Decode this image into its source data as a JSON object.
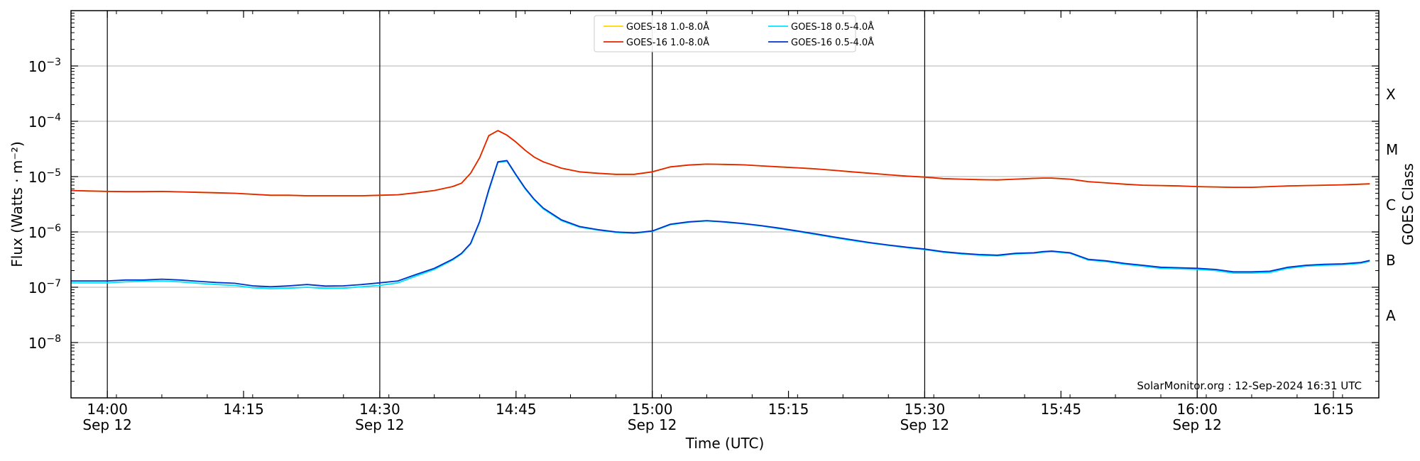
{
  "chart_data": {
    "type": "line",
    "title": "",
    "xlabel": "Time (UTC)",
    "ylabel": "Flux (Watts · m⁻²)",
    "y2label": "GOES Class",
    "yscale": "log",
    "xlim": [
      "13:56",
      "16:20"
    ],
    "ylim": [
      1e-09,
      0.01
    ],
    "grid": "horizontal",
    "legend": "top-center",
    "date": "Sep 12",
    "x_ticks": [
      {
        "time": "14:00",
        "label": "14:00",
        "date": "Sep 12"
      },
      {
        "time": "14:15",
        "label": "14:15",
        "date": ""
      },
      {
        "time": "14:30",
        "label": "14:30",
        "date": "Sep 12"
      },
      {
        "time": "14:45",
        "label": "14:45",
        "date": ""
      },
      {
        "time": "15:00",
        "label": "15:00",
        "date": "Sep 12"
      },
      {
        "time": "15:15",
        "label": "15:15",
        "date": ""
      },
      {
        "time": "15:30",
        "label": "15:30",
        "date": "Sep 12"
      },
      {
        "time": "15:45",
        "label": "15:45",
        "date": ""
      },
      {
        "time": "16:00",
        "label": "16:00",
        "date": "Sep 12"
      },
      {
        "time": "16:15",
        "label": "16:15",
        "date": ""
      }
    ],
    "y_ticks": [
      {
        "value": 1e-08,
        "base": "10",
        "exp": "−8"
      },
      {
        "value": 1e-07,
        "base": "10",
        "exp": "−7"
      },
      {
        "value": 1e-06,
        "base": "10",
        "exp": "−6"
      },
      {
        "value": 1e-05,
        "base": "10",
        "exp": "−5"
      },
      {
        "value": 0.0001,
        "base": "10",
        "exp": "−4"
      },
      {
        "value": 0.001,
        "base": "10",
        "exp": "−3"
      }
    ],
    "goes_classes": [
      {
        "label": "A",
        "value": 3.16e-08
      },
      {
        "label": "B",
        "value": 3.16e-07
      },
      {
        "label": "C",
        "value": 3.16e-06
      },
      {
        "label": "M",
        "value": 3.16e-05
      },
      {
        "label": "X",
        "value": 0.000316
      }
    ],
    "vertical_lines": [
      "14:00",
      "14:30",
      "15:00",
      "15:30",
      "16:00"
    ],
    "watermark": "SolarMonitor.org : 12-Sep-2024 16:31 UTC",
    "x": [
      "13:56",
      "13:58",
      "14:00",
      "14:02",
      "14:04",
      "14:06",
      "14:08",
      "14:10",
      "14:12",
      "14:14",
      "14:16",
      "14:18",
      "14:20",
      "14:22",
      "14:24",
      "14:26",
      "14:28",
      "14:30",
      "14:32",
      "14:34",
      "14:36",
      "14:38",
      "14:39",
      "14:40",
      "14:41",
      "14:42",
      "14:43",
      "14:44",
      "14:45",
      "14:46",
      "14:47",
      "14:48",
      "14:50",
      "14:52",
      "14:54",
      "14:56",
      "14:58",
      "15:00",
      "15:02",
      "15:04",
      "15:06",
      "15:08",
      "15:10",
      "15:12",
      "15:14",
      "15:16",
      "15:18",
      "15:20",
      "15:22",
      "15:24",
      "15:26",
      "15:28",
      "15:30",
      "15:32",
      "15:34",
      "15:36",
      "15:38",
      "15:40",
      "15:42",
      "15:43",
      "15:44",
      "15:46",
      "15:48",
      "15:50",
      "15:52",
      "15:54",
      "15:56",
      "15:58",
      "16:00",
      "16:02",
      "16:04",
      "16:06",
      "16:08",
      "16:10",
      "16:12",
      "16:14",
      "16:16",
      "16:18",
      "16:19"
    ],
    "series": [
      {
        "name": "GOES-18 1.0-8.0Å",
        "color": "#ffd700",
        "values": [
          5.6e-06,
          5.5e-06,
          5.4e-06,
          5.35e-06,
          5.35e-06,
          5.4e-06,
          5.3e-06,
          5.2e-06,
          5.1e-06,
          5e-06,
          4.8e-06,
          4.6e-06,
          4.6e-06,
          4.5e-06,
          4.5e-06,
          4.5e-06,
          4.5e-06,
          4.6e-06,
          4.7e-06,
          5.1e-06,
          5.6e-06,
          6.6e-06,
          7.6e-06,
          1.15e-05,
          2.2e-05,
          5.5e-05,
          6.8e-05,
          5.6e-05,
          4.2e-05,
          3e-05,
          2.25e-05,
          1.85e-05,
          1.42e-05,
          1.22e-05,
          1.15e-05,
          1.1e-05,
          1.1e-05,
          1.22e-05,
          1.5e-05,
          1.62e-05,
          1.68e-05,
          1.66e-05,
          1.63e-05,
          1.56e-05,
          1.5e-05,
          1.44e-05,
          1.38e-05,
          1.3e-05,
          1.22e-05,
          1.15e-05,
          1.08e-05,
          1.02e-05,
          9.8e-06,
          9.2e-06,
          9e-06,
          8.8e-06,
          8.7e-06,
          9e-06,
          9.3e-06,
          9.4e-06,
          9.4e-06,
          9e-06,
          8.1e-06,
          7.7e-06,
          7.3e-06,
          7e-06,
          6.9e-06,
          6.8e-06,
          6.6e-06,
          6.5e-06,
          6.4e-06,
          6.4e-06,
          6.6e-06,
          6.8e-06,
          6.9e-06,
          7e-06,
          7.1e-06,
          7.3e-06,
          7.4e-06
        ]
      },
      {
        "name": "GOES-18 0.5-4.0Å",
        "color": "#00e5ff",
        "values": [
          1.2e-07,
          1.2e-07,
          1.2e-07,
          1.25e-07,
          1.28e-07,
          1.3e-07,
          1.25e-07,
          1.18e-07,
          1.12e-07,
          1.08e-07,
          9.8e-08,
          9.4e-08,
          9.6e-08,
          1e-07,
          9.5e-08,
          9.6e-08,
          1.02e-07,
          1.08e-07,
          1.2e-07,
          1.6e-07,
          2.1e-07,
          3.1e-07,
          4e-07,
          6e-07,
          1.5e-06,
          5.5e-06,
          1.8e-05,
          1.9e-05,
          1.05e-05,
          6e-06,
          3.8e-06,
          2.6e-06,
          1.6e-06,
          1.22e-06,
          1.08e-06,
          9.8e-07,
          9.5e-07,
          1.02e-06,
          1.35e-06,
          1.5e-06,
          1.58e-06,
          1.5e-06,
          1.4e-06,
          1.28e-06,
          1.15e-06,
          1.02e-06,
          9e-07,
          7.9e-07,
          7e-07,
          6.3e-07,
          5.7e-07,
          5.2e-07,
          4.8e-07,
          4.3e-07,
          4e-07,
          3.8e-07,
          3.7e-07,
          4e-07,
          4.1e-07,
          4.3e-07,
          4.4e-07,
          4.1e-07,
          3.1e-07,
          2.9e-07,
          2.6e-07,
          2.4e-07,
          2.2e-07,
          2.15e-07,
          2.1e-07,
          2e-07,
          1.8e-07,
          1.8e-07,
          1.85e-07,
          2.2e-07,
          2.4e-07,
          2.5e-07,
          2.55e-07,
          2.7e-07,
          2.95e-07
        ]
      },
      {
        "name": "GOES-16 1.0-8.0Å",
        "color": "#e62200",
        "values": [
          5.6e-06,
          5.5e-06,
          5.4e-06,
          5.35e-06,
          5.35e-06,
          5.4e-06,
          5.3e-06,
          5.2e-06,
          5.1e-06,
          5e-06,
          4.8e-06,
          4.6e-06,
          4.6e-06,
          4.5e-06,
          4.5e-06,
          4.5e-06,
          4.5e-06,
          4.6e-06,
          4.7e-06,
          5.1e-06,
          5.6e-06,
          6.6e-06,
          7.6e-06,
          1.15e-05,
          2.2e-05,
          5.5e-05,
          6.8e-05,
          5.6e-05,
          4.2e-05,
          3e-05,
          2.25e-05,
          1.85e-05,
          1.42e-05,
          1.22e-05,
          1.15e-05,
          1.1e-05,
          1.1e-05,
          1.22e-05,
          1.5e-05,
          1.62e-05,
          1.68e-05,
          1.66e-05,
          1.63e-05,
          1.56e-05,
          1.5e-05,
          1.44e-05,
          1.38e-05,
          1.3e-05,
          1.22e-05,
          1.15e-05,
          1.08e-05,
          1.02e-05,
          9.8e-06,
          9.2e-06,
          9e-06,
          8.8e-06,
          8.7e-06,
          9e-06,
          9.3e-06,
          9.4e-06,
          9.4e-06,
          9e-06,
          8.1e-06,
          7.7e-06,
          7.3e-06,
          7e-06,
          6.9e-06,
          6.8e-06,
          6.6e-06,
          6.5e-06,
          6.4e-06,
          6.4e-06,
          6.6e-06,
          6.8e-06,
          6.9e-06,
          7e-06,
          7.1e-06,
          7.3e-06,
          7.4e-06
        ]
      },
      {
        "name": "GOES-16 0.5-4.0Å",
        "color": "#0033cc",
        "values": [
          1.3e-07,
          1.3e-07,
          1.3e-07,
          1.35e-07,
          1.35e-07,
          1.4e-07,
          1.35e-07,
          1.28e-07,
          1.22e-07,
          1.18e-07,
          1.06e-07,
          1.02e-07,
          1.06e-07,
          1.12e-07,
          1.05e-07,
          1.06e-07,
          1.12e-07,
          1.2e-07,
          1.3e-07,
          1.7e-07,
          2.2e-07,
          3.2e-07,
          4.1e-07,
          6.2e-07,
          1.55e-06,
          5.8e-06,
          1.85e-05,
          1.95e-05,
          1.08e-05,
          6.2e-06,
          3.9e-06,
          2.7e-06,
          1.65e-06,
          1.25e-06,
          1.1e-06,
          1e-06,
          9.6e-07,
          1.04e-06,
          1.38e-06,
          1.52e-06,
          1.6e-06,
          1.52e-06,
          1.42e-06,
          1.3e-06,
          1.17e-06,
          1.04e-06,
          9.2e-07,
          8.1e-07,
          7.2e-07,
          6.4e-07,
          5.8e-07,
          5.3e-07,
          4.9e-07,
          4.4e-07,
          4.1e-07,
          3.9e-07,
          3.8e-07,
          4.1e-07,
          4.2e-07,
          4.4e-07,
          4.5e-07,
          4.2e-07,
          3.2e-07,
          3e-07,
          2.7e-07,
          2.5e-07,
          2.3e-07,
          2.25e-07,
          2.2e-07,
          2.1e-07,
          1.9e-07,
          1.9e-07,
          1.95e-07,
          2.3e-07,
          2.5e-07,
          2.6e-07,
          2.65e-07,
          2.8e-07,
          3.05e-07
        ]
      }
    ],
    "legend_order": [
      0,
      2,
      1,
      3
    ]
  }
}
